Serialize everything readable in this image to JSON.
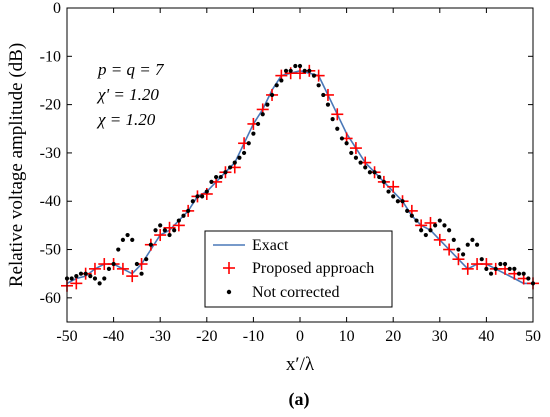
{
  "chart_data": {
    "type": "line",
    "title": "",
    "caption": "(a)",
    "xlabel": "x′/λ",
    "ylabel": "Relative voltage amplitude (dB)",
    "xlim": [
      -50,
      50
    ],
    "ylim": [
      -65,
      0
    ],
    "xticks": [
      -50,
      -40,
      -30,
      -20,
      -10,
      0,
      10,
      20,
      30,
      40,
      50
    ],
    "yticks": [
      0,
      -10,
      -20,
      -30,
      -40,
      -50,
      -60
    ],
    "grid": false,
    "legend_position": "bottom-center",
    "annotations": [
      "p = q = 7",
      "χ' = 1.20",
      "χ = 1.20"
    ],
    "series": [
      {
        "name": "Exact",
        "style": "line",
        "color": "#4a78b8",
        "x": [
          -50,
          -48,
          -46,
          -44,
          -42,
          -40,
          -38,
          -36,
          -34,
          -32,
          -30,
          -28,
          -26,
          -24,
          -22,
          -20,
          -18,
          -16,
          -14,
          -12,
          -10,
          -8,
          -6,
          -4,
          -2,
          0,
          2,
          4,
          6,
          8,
          10,
          12,
          14,
          16,
          18,
          20,
          22,
          24,
          26,
          28,
          30,
          32,
          34,
          36,
          38,
          40,
          42,
          44,
          46,
          48,
          50
        ],
        "y": [
          -57,
          -56,
          -55.5,
          -54,
          -53,
          -53,
          -54,
          -55,
          -53,
          -50,
          -47,
          -46,
          -44,
          -42,
          -39,
          -38,
          -36,
          -34,
          -32,
          -28,
          -24,
          -21,
          -17,
          -14,
          -13.5,
          -13,
          -13.5,
          -14,
          -18,
          -22,
          -26,
          -29,
          -32,
          -34,
          -36,
          -38,
          -40,
          -43,
          -45,
          -46,
          -48,
          -50,
          -52,
          -54,
          -53,
          -53,
          -54,
          -55,
          -56,
          -57,
          -57
        ]
      },
      {
        "name": "Proposed approach",
        "style": "marker-plus",
        "color": "#ff0000",
        "x": [
          -50,
          -48,
          -46,
          -44,
          -42,
          -40,
          -38,
          -36,
          -34,
          -32,
          -30,
          -28,
          -26,
          -24,
          -22,
          -20,
          -18,
          -16,
          -14,
          -12,
          -10,
          -8,
          -6,
          -4,
          -2,
          0,
          2,
          4,
          6,
          8,
          10,
          12,
          14,
          16,
          18,
          20,
          22,
          24,
          26,
          28,
          30,
          32,
          34,
          36,
          38,
          40,
          42,
          44,
          46,
          48,
          50
        ],
        "y": [
          -57.5,
          -57,
          -55,
          -54,
          -53,
          -53,
          -54,
          -55.5,
          -53,
          -49,
          -47,
          -45.5,
          -45,
          -42,
          -39,
          -38.5,
          -36,
          -34,
          -33,
          -28,
          -24,
          -21,
          -18,
          -14,
          -13.5,
          -13.5,
          -13,
          -14,
          -18,
          -22,
          -27,
          -29,
          -32,
          -34,
          -36,
          -37,
          -40,
          -42,
          -45,
          -44.5,
          -48,
          -50,
          -52,
          -54,
          -53,
          -53,
          -54,
          -54,
          -55,
          -56,
          -57
        ]
      },
      {
        "name": "Not corrected",
        "style": "marker-dot",
        "color": "#000000",
        "x": [
          -50,
          -49,
          -48,
          -47,
          -46,
          -45,
          -44,
          -43,
          -42,
          -41,
          -40,
          -39,
          -38,
          -37,
          -36,
          -35,
          -34,
          -33,
          -32,
          -31,
          -30,
          -29,
          -28,
          -27,
          -26,
          -25,
          -24,
          -23,
          -22,
          -21,
          -20,
          -19,
          -18,
          -17,
          -16,
          -15,
          -14,
          -13,
          -12,
          -11,
          -10,
          -9,
          -8,
          -7,
          -6,
          -5,
          -4,
          -3,
          -2,
          -1,
          0,
          1,
          2,
          3,
          4,
          5,
          6,
          7,
          8,
          9,
          10,
          11,
          12,
          13,
          14,
          15,
          16,
          17,
          18,
          19,
          20,
          21,
          22,
          23,
          24,
          25,
          26,
          27,
          28,
          29,
          30,
          31,
          32,
          33,
          34,
          35,
          36,
          37,
          38,
          39,
          40,
          41,
          42,
          43,
          44,
          45,
          46,
          47,
          48,
          49,
          50
        ],
        "y": [
          -56,
          -56,
          -55.5,
          -55,
          -55,
          -55.5,
          -56,
          -57,
          -56,
          -54,
          -53,
          -50,
          -48,
          -47,
          -48,
          -53,
          -55,
          -52,
          -49,
          -46,
          -45,
          -46,
          -47,
          -46,
          -44,
          -43,
          -42,
          -40,
          -39,
          -39,
          -38,
          -36,
          -35,
          -35,
          -34,
          -33,
          -32,
          -31,
          -30,
          -28,
          -26,
          -24,
          -22,
          -20,
          -18,
          -16,
          -15,
          -13,
          -13,
          -12,
          -12,
          -13,
          -13,
          -14,
          -16,
          -18,
          -20,
          -23,
          -25,
          -27,
          -28,
          -30,
          -31,
          -32,
          -33,
          -34,
          -34,
          -35,
          -36,
          -38,
          -39,
          -40,
          -40,
          -42,
          -43,
          -44,
          -46,
          -47,
          -46,
          -45,
          -44,
          -45,
          -46,
          -48,
          -50,
          -51,
          -49,
          -48,
          -49,
          -52,
          -54,
          -55,
          -54,
          -53,
          -53,
          -54,
          -54,
          -55,
          -55,
          -56,
          -57
        ]
      }
    ]
  }
}
